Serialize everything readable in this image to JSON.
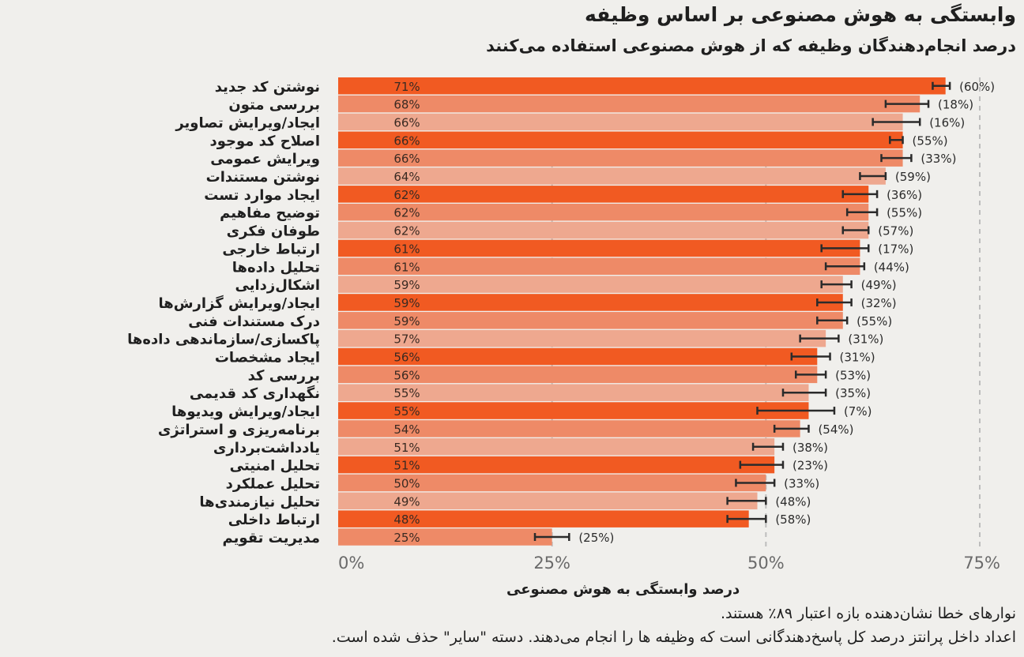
{
  "title": "وابستگی به هوش مصنوعی بر اساس وظیفه",
  "subtitle": "درصد انجام‌دهندگان وظیفه که از هوش مصنوعی استفاده می‌کنند",
  "footnotes": [
    "نوارهای خطا نشان‌دهنده بازه اعتبار ۸۹٪ هستند.",
    "اعداد داخل پرانتز درصد کل پاسخ‌دهندگانی است که وظیفه ‌ها را انجام می‌دهند. دسته \"سایر\" حذف شده است."
  ],
  "colors": {
    "bar_primary": "#f15a22",
    "bar_secondary": "#ee8a67",
    "bar_tertiary": "#eea88f",
    "error_bar": "#2b2b2b",
    "grid": "#bdbdbd",
    "background": "#f0efec"
  },
  "chart_data": {
    "type": "bar",
    "orientation": "horizontal",
    "title": "وابستگی به هوش مصنوعی بر اساس وظیفه",
    "subtitle": "درصد انجام‌دهندگان وظیفه که از هوش مصنوعی استفاده می‌کنند",
    "xlabel": "درصد وابستگی به هوش مصنوعی",
    "ylabel": "",
    "xlim": [
      0,
      75
    ],
    "xticks": [
      0,
      25,
      50,
      75
    ],
    "xtick_labels": [
      "0%",
      "25%",
      "50%",
      "75%"
    ],
    "grid": true,
    "categories": [
      "نوشتن کد جدید",
      "بررسی متون",
      "ایجاد/ویرایش تصاویر",
      "اصلاح کد موجود",
      "ویرایش عمومی",
      "نوشتن مستندات",
      "ایجاد موارد تست",
      "توضیح مفاهیم",
      "طوفان فکری",
      "ارتباط خارجی",
      "تحلیل داده‌ها",
      "اشکال‌زدایی",
      "ایجاد/ویرایش گزارش‌ها",
      "درک مستندات فنی",
      "پاکسازی/سازماندهی داده‌ها",
      "ایجاد مشخصات",
      "بررسی کد",
      "نگهداری کد قدیمی",
      "ایجاد/ویرایش ویدیوها",
      "برنامه‌ریزی و استراتژی",
      "یادداشت‌برداری",
      "تحلیل امنیتی",
      "تحلیل عملکرد",
      "تحلیل نیازمندی‌ها",
      "ارتباط داخلی",
      "مدیریت تقویم"
    ],
    "values": [
      71,
      68,
      66,
      66,
      66,
      64,
      62,
      62,
      62,
      61,
      61,
      59,
      59,
      59,
      57,
      56,
      56,
      55,
      55,
      54,
      51,
      51,
      50,
      49,
      48,
      25
    ],
    "value_labels": [
      "71%",
      "68%",
      "66%",
      "66%",
      "66%",
      "64%",
      "62%",
      "62%",
      "62%",
      "61%",
      "61%",
      "59%",
      "59%",
      "59%",
      "57%",
      "56%",
      "56%",
      "55%",
      "55%",
      "54%",
      "51%",
      "51%",
      "50%",
      "49%",
      "48%",
      "25%"
    ],
    "error_low": [
      69.5,
      64.0,
      62.5,
      64.5,
      63.5,
      61.0,
      59.0,
      59.5,
      59.0,
      56.5,
      57.0,
      56.5,
      56.0,
      56.0,
      54.0,
      53.0,
      53.5,
      52.0,
      49.0,
      51.0,
      48.5,
      47.0,
      46.5,
      45.5,
      45.5,
      23.0
    ],
    "error_high": [
      71.5,
      69.0,
      68.0,
      66.0,
      67.0,
      64.0,
      63.0,
      63.0,
      62.0,
      62.0,
      61.5,
      60.0,
      60.0,
      59.5,
      58.5,
      57.5,
      57.0,
      57.0,
      58.0,
      55.0,
      52.0,
      52.0,
      51.0,
      50.0,
      50.0,
      27.0
    ],
    "respondent_share_labels": [
      "(60%)",
      "(18%)",
      "(16%)",
      "(55%)",
      "(33%)",
      "(59%)",
      "(36%)",
      "(55%)",
      "(57%)",
      "(17%)",
      "(44%)",
      "(49%)",
      "(32%)",
      "(55%)",
      "(31%)",
      "(31%)",
      "(53%)",
      "(35%)",
      "(7%)",
      "(54%)",
      "(38%)",
      "(23%)",
      "(33%)",
      "(48%)",
      "(58%)",
      "(25%)"
    ],
    "bar_color_keys": [
      "primary",
      "secondary",
      "tertiary",
      "primary",
      "secondary",
      "tertiary",
      "primary",
      "secondary",
      "tertiary",
      "primary",
      "secondary",
      "tertiary",
      "primary",
      "secondary",
      "tertiary",
      "primary",
      "secondary",
      "tertiary",
      "primary",
      "secondary",
      "tertiary",
      "primary",
      "secondary",
      "tertiary",
      "primary",
      "secondary"
    ]
  }
}
